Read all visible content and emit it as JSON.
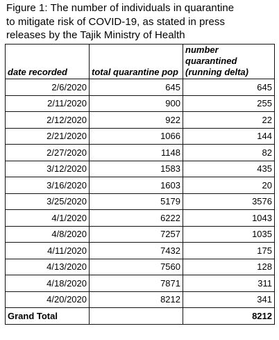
{
  "caption": {
    "line1": "Figure 1: The number of individuals in quarantine",
    "line2": "to mitigate risk of COVID-19, as stated in press",
    "line3": "releases by the Tajik Ministry of Health"
  },
  "table": {
    "headers": {
      "date": "date recorded",
      "total": "total quarantine pop",
      "delta_line1": "number quarantined",
      "delta_line2": "(running delta)"
    },
    "rows": [
      {
        "date": "2/6/2020",
        "total": "645",
        "delta": "645"
      },
      {
        "date": "2/11/2020",
        "total": "900",
        "delta": "255"
      },
      {
        "date": "2/12/2020",
        "total": "922",
        "delta": "22"
      },
      {
        "date": "2/21/2020",
        "total": "1066",
        "delta": "144"
      },
      {
        "date": "2/27/2020",
        "total": "1148",
        "delta": "82"
      },
      {
        "date": "3/12/2020",
        "total": "1583",
        "delta": "435"
      },
      {
        "date": "3/16/2020",
        "total": "1603",
        "delta": "20"
      },
      {
        "date": "3/25/2020",
        "total": "5179",
        "delta": "3576"
      },
      {
        "date": "4/1/2020",
        "total": "6222",
        "delta": "1043"
      },
      {
        "date": "4/8/2020",
        "total": "7257",
        "delta": "1035"
      },
      {
        "date": "4/11/2020",
        "total": "7432",
        "delta": "175"
      },
      {
        "date": "4/13/2020",
        "total": "7560",
        "delta": "128"
      },
      {
        "date": "4/18/2020",
        "total": "7871",
        "delta": "311"
      },
      {
        "date": "4/20/2020",
        "total": "8212",
        "delta": "341"
      }
    ],
    "footer": {
      "label": "Grand Total",
      "total": "",
      "delta": "8212"
    }
  }
}
